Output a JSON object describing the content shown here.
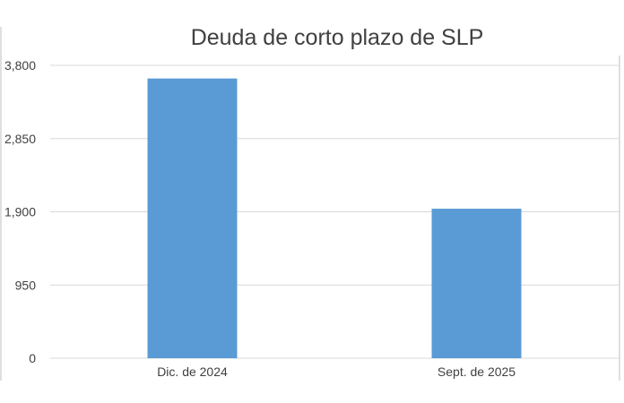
{
  "chart_data": {
    "type": "bar",
    "title": "Deuda de corto plazo de SLP",
    "xlabel": "",
    "ylabel": "",
    "categories": [
      "Dic. de 2024",
      "Sept. de 2025"
    ],
    "values": [
      3630,
      1940
    ],
    "ylim": [
      0,
      3800
    ],
    "yticks": [
      0,
      950,
      1900,
      2850,
      3800
    ],
    "ytick_labels": [
      "0",
      "950",
      "1,900",
      "2,850",
      "3,800"
    ],
    "grid": true,
    "legend": "none",
    "bar_color": "#5b9bd5"
  }
}
